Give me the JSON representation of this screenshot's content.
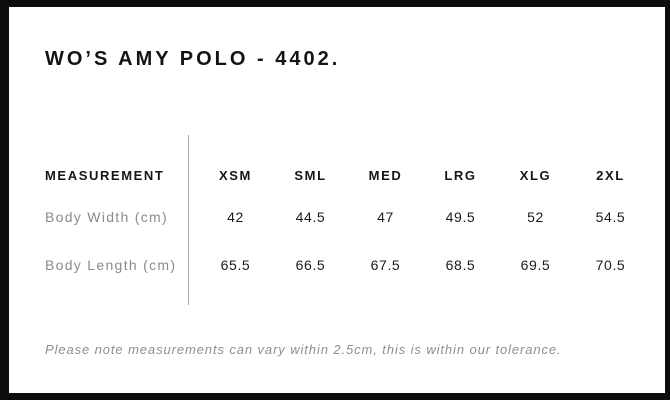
{
  "page": {
    "title": "WO’S AMY POLO - 4402.",
    "tolerance_note": "Please note measurements can vary within 2.5cm, this is within our tolerance."
  },
  "size_chart": {
    "label_header": "MEASUREMENT",
    "size_headers": [
      "XSM",
      "SML",
      "MED",
      "LRG",
      "XLG",
      "2XL"
    ],
    "rows": [
      {
        "label": "Body Width (cm)",
        "values": [
          "42",
          "44.5",
          "47",
          "49.5",
          "52",
          "54.5"
        ]
      },
      {
        "label": "Body Length (cm)",
        "values": [
          "65.5",
          "66.5",
          "67.5",
          "68.5",
          "69.5",
          "70.5"
        ]
      }
    ]
  },
  "colors": {
    "border": "#0d0d0d",
    "heading_text": "#141414",
    "header_text": "#161616",
    "value_text": "#1c1c1c",
    "label_text": "#8c8c8c",
    "note_text": "#8f8f8f",
    "divider": "#a6a6a6",
    "background": "#ffffff"
  }
}
